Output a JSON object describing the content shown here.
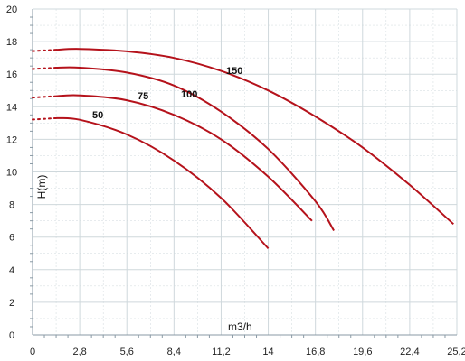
{
  "chart_data": {
    "type": "line",
    "title": "",
    "xlabel": "m3/h",
    "ylabel": "H(m)",
    "xlim": [
      0,
      25.2
    ],
    "ylim": [
      0,
      20
    ],
    "grid": true,
    "x_ticks": [
      "0",
      "2,8",
      "5,6",
      "8,4",
      "11,2",
      "14",
      "16,8",
      "19,6",
      "22,4",
      "25,2"
    ],
    "y_ticks": [
      "0",
      "2",
      "4",
      "6",
      "8",
      "10",
      "12",
      "14",
      "16",
      "18",
      "20"
    ],
    "series": [
      {
        "name": "150",
        "x": [
          1.4,
          2.8,
          5.6,
          8.4,
          11.2,
          14,
          16.8,
          19.6,
          22.4,
          25.0
        ],
        "y": [
          17.5,
          17.55,
          17.4,
          17.0,
          16.2,
          15.0,
          13.4,
          11.5,
          9.2,
          6.8
        ]
      },
      {
        "name": "100",
        "x": [
          1.4,
          2.8,
          5.6,
          8.4,
          11.2,
          14,
          16.8,
          17.9
        ],
        "y": [
          16.4,
          16.4,
          16.1,
          15.3,
          13.7,
          11.4,
          8.2,
          6.4
        ]
      },
      {
        "name": "75",
        "x": [
          1.4,
          2.8,
          5.6,
          8.4,
          11.2,
          14,
          16.6
        ],
        "y": [
          14.65,
          14.7,
          14.4,
          13.5,
          12.0,
          9.7,
          7.0
        ]
      },
      {
        "name": "50",
        "x": [
          1.4,
          2.8,
          5.6,
          8.4,
          11.2,
          14
        ],
        "y": [
          13.3,
          13.2,
          12.3,
          10.7,
          8.4,
          5.3
        ]
      }
    ],
    "line_color": "#b5121b",
    "grid_color": "#cfd8dc"
  }
}
